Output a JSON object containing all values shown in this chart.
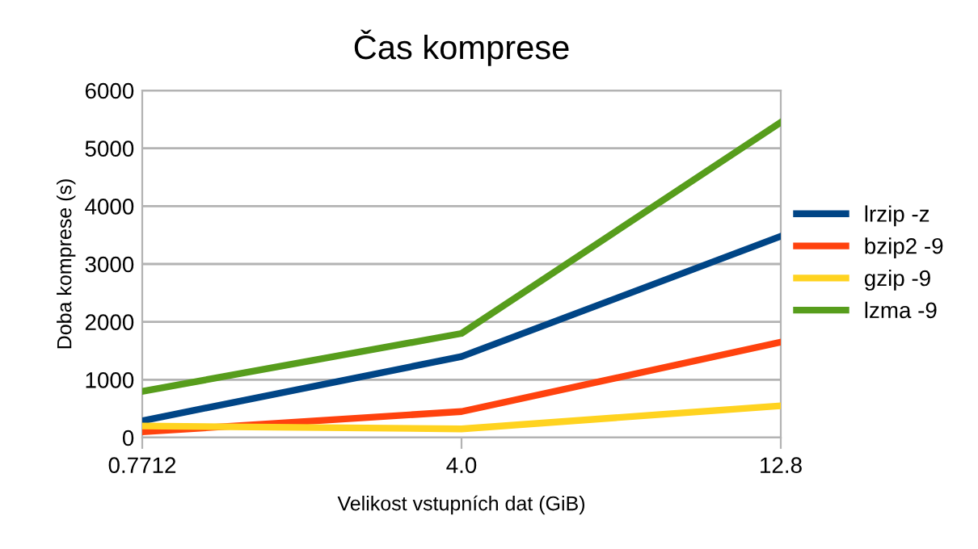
{
  "chart_data": {
    "type": "line",
    "title": "Čas komprese",
    "xlabel": "Velikost vstupních dat (GiB)",
    "ylabel": "Doba komprese (s)",
    "categories": [
      "0.7712",
      "4.0",
      "12.8"
    ],
    "series": [
      {
        "name": "lrzip -z",
        "color": "#004586",
        "values": [
          290,
          1400,
          3480
        ]
      },
      {
        "name": "bzip2 -9",
        "color": "#ff420e",
        "values": [
          100,
          450,
          1650
        ]
      },
      {
        "name": "gzip -9",
        "color": "#ffd320",
        "values": [
          200,
          150,
          550
        ]
      },
      {
        "name": "lzma -9",
        "color": "#579d1c",
        "values": [
          800,
          1800,
          5450
        ]
      }
    ],
    "ylim": [
      0,
      6000
    ],
    "yticks": [
      0,
      1000,
      2000,
      3000,
      4000,
      5000,
      6000
    ],
    "grid": "y",
    "legend": "right",
    "marker": "none",
    "line_style": "solid"
  }
}
